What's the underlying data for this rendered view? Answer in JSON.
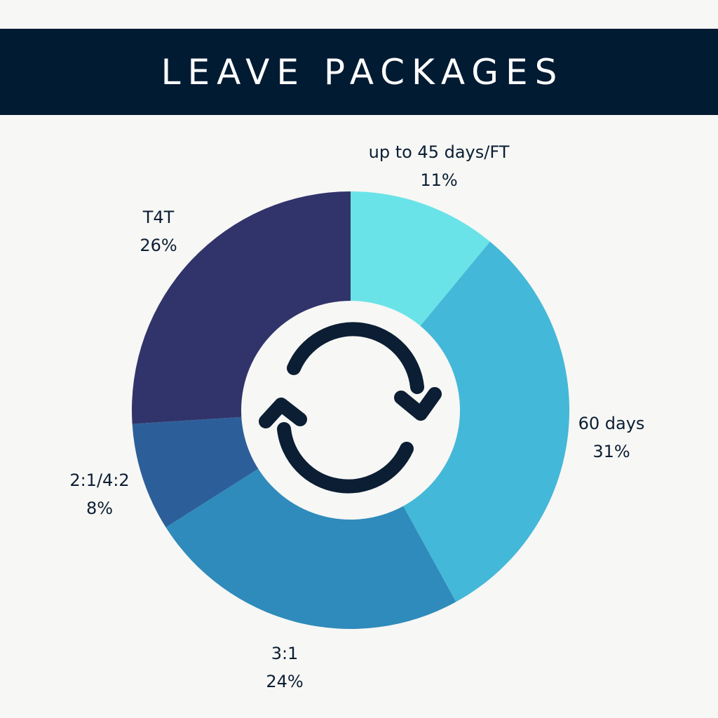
{
  "title": "LEAVE PACKAGES",
  "center_icon": "refresh-cycle-icon",
  "colors": {
    "header_bg": "#011b33",
    "background": "#f7f7f5",
    "label_text": "#0b1e33",
    "icon": "#0b1e33"
  },
  "chart_data": {
    "type": "pie",
    "style": "donut",
    "slices": [
      {
        "label": "up to 45 days/FT",
        "percent_label": "11%",
        "value": 11,
        "color": "#6ae3e8"
      },
      {
        "label": "60 days",
        "percent_label": "31%",
        "value": 31,
        "color": "#44b8d8"
      },
      {
        "label": "3:1",
        "percent_label": "24%",
        "value": 24,
        "color": "#2f8bbb"
      },
      {
        "label": "2:1/4:2",
        "percent_label": "8%",
        "value": 8,
        "color": "#2c5f99"
      },
      {
        "label": "T4T",
        "percent_label": "26%",
        "value": 26,
        "color": "#31346a"
      }
    ]
  }
}
